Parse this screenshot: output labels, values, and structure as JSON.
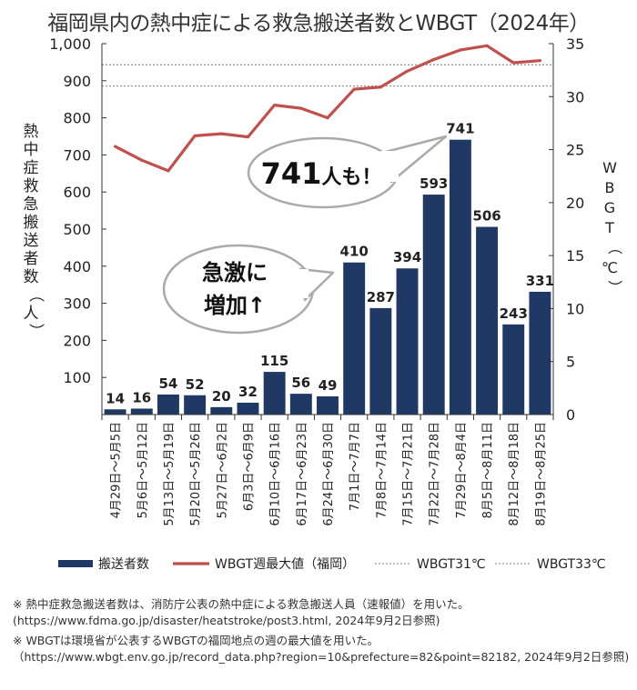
{
  "chart_data": {
    "type": "bar",
    "title": "福岡県内の熱中症による救急搬送者数とWBGT（2024年）",
    "ylabel": "熱中症救急搬送者数（人）",
    "y2label": "WBGT（℃）",
    "ylim": [
      0,
      1000
    ],
    "y2lim": [
      0,
      35
    ],
    "y_ticks": [
      "100",
      "200",
      "300",
      "400",
      "500",
      "600",
      "700",
      "800",
      "900",
      "1,000"
    ],
    "y2_ticks": [
      "0",
      "5",
      "10",
      "15",
      "20",
      "25",
      "30",
      "35"
    ],
    "categories": [
      "4月29日～5月5日",
      "5月6日～5月12日",
      "5月13日～5月19日",
      "5月20日～5月26日",
      "5月27日～6月2日",
      "6月3日～6月9日",
      "6月10日～6月16日",
      "6月17日～6月23日",
      "6月24日～6月30日",
      "7月1日～7月7日",
      "7月8日～7月14日",
      "7月15日～7月21日",
      "7月22日～7月28日",
      "7月29日～8月4日",
      "8月5日～8月11日",
      "8月12日～8月18日",
      "8月19日～8月25日"
    ],
    "series": [
      {
        "name": "搬送者数",
        "type": "bar",
        "color": "#1f3864",
        "values": [
          14,
          16,
          54,
          52,
          20,
          32,
          115,
          56,
          49,
          410,
          287,
          394,
          593,
          741,
          506,
          243,
          331
        ]
      },
      {
        "name": "WBGT週最大値（福岡）",
        "type": "line",
        "axis": "right",
        "color": "#c0504d",
        "values": [
          25.3,
          24.0,
          23.0,
          26.3,
          26.5,
          26.2,
          29.2,
          28.9,
          28.0,
          30.7,
          30.9,
          32.4,
          33.5,
          34.4,
          34.8,
          33.2,
          33.4
        ]
      }
    ],
    "reference_lines": [
      {
        "name": "WBGT31℃",
        "value": 31,
        "color": "#999999"
      },
      {
        "name": "WBGT33℃",
        "value": 33,
        "color": "#999999"
      }
    ],
    "grid": false,
    "legend_position": "bottom"
  },
  "callouts": {
    "big_number": "741",
    "big_suffix": "人も！",
    "surge_line1": "急激に",
    "surge_line2": "増加↑"
  },
  "notes": [
    "※ 熱中症救急搬送者数は、消防庁公表の熱中症による救急搬送人員（速報値）を用いた。　(https://www.fdma.go.jp/disaster/heatstroke/post3.html, 2024年9月2日参照)",
    "※ WBGTは環境省が公表するWBGTの福岡地点の週の最大値を用いた。（https://www.wbgt.env.go.jp/record_data.php?region=10&prefecture=82&point=82182, 2024年9月2日参照)"
  ]
}
